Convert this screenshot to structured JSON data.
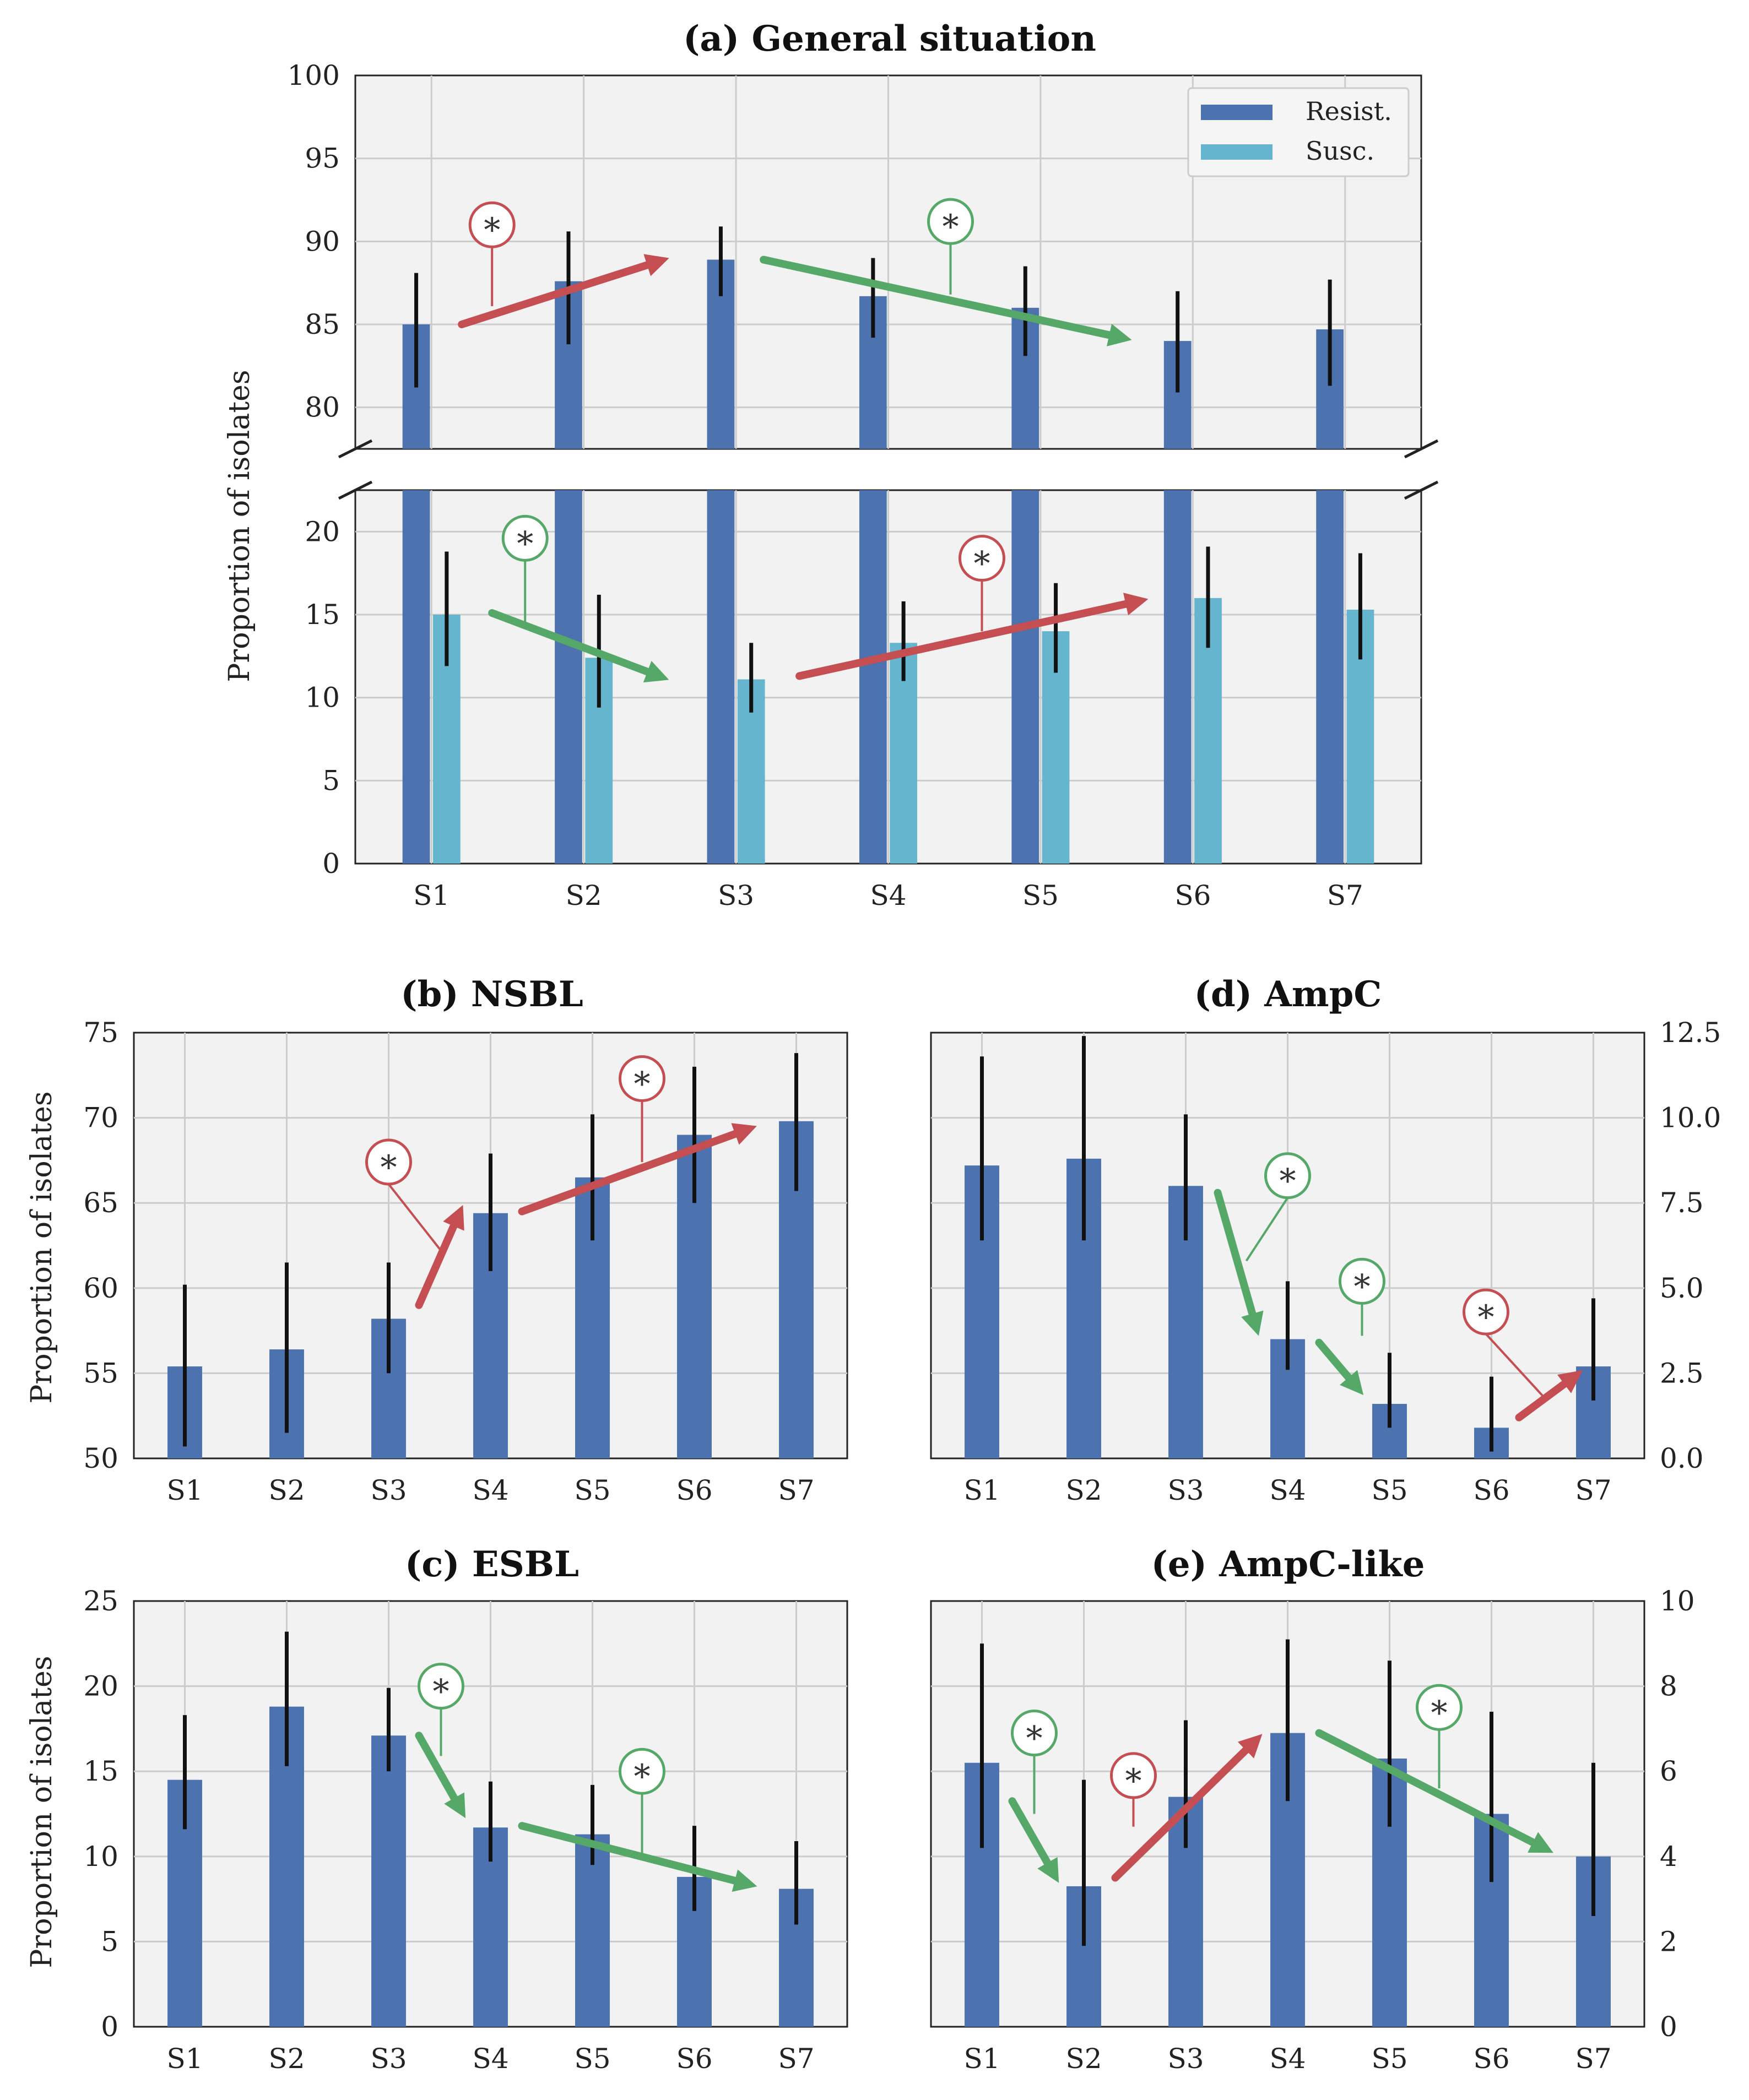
{
  "chart_data": [
    {
      "id": "a",
      "type": "bar",
      "title": "(a) General situation",
      "ylabel": "Proportion of isolates",
      "categories": [
        "S1",
        "S2",
        "S3",
        "S4",
        "S5",
        "S6",
        "S7"
      ],
      "broken_axis": true,
      "upper_ylim": [
        77.5,
        100
      ],
      "lower_ylim": [
        0,
        22.5
      ],
      "upper_ticks": [
        "80",
        "85",
        "90",
        "95",
        "100"
      ],
      "lower_ticks": [
        "0",
        "5",
        "10",
        "15",
        "20"
      ],
      "legend": {
        "position": "top-right",
        "entries": [
          "Resist.",
          "Susc."
        ]
      },
      "series": [
        {
          "name": "Resist.",
          "color": "#4c72b0",
          "values": [
            85,
            87.6,
            88.9,
            86.7,
            86,
            84,
            84.7
          ],
          "err_low": [
            81.2,
            83.8,
            86.7,
            84.2,
            83.1,
            80.9,
            81.3
          ],
          "err_high": [
            88.1,
            90.6,
            90.9,
            89,
            88.5,
            87,
            87.7
          ]
        },
        {
          "name": "Susc.",
          "color": "#64b5cd",
          "values": [
            15,
            12.4,
            11.1,
            13.3,
            14,
            16,
            15.3
          ],
          "err_low": [
            11.9,
            9.4,
            9.1,
            11,
            11.5,
            13,
            12.3
          ],
          "err_high": [
            18.8,
            16.2,
            13.3,
            15.8,
            16.9,
            19.1,
            18.7
          ]
        }
      ],
      "annotations": [
        {
          "symbol": "*",
          "trend": "increase",
          "color": "#c44e52",
          "from": "S1",
          "to": "S3",
          "series": "Resist."
        },
        {
          "symbol": "*",
          "trend": "decrease",
          "color": "#55a868",
          "from": "S3",
          "to": "S6",
          "series": "Resist."
        },
        {
          "symbol": "*",
          "trend": "decrease",
          "color": "#55a868",
          "from": "S1",
          "to": "S3",
          "series": "Susc."
        },
        {
          "symbol": "*",
          "trend": "increase",
          "color": "#c44e52",
          "from": "S3",
          "to": "S6",
          "series": "Susc."
        }
      ]
    },
    {
      "id": "b",
      "type": "bar",
      "title": "(b) NSBL",
      "ylabel": "Proportion of isolates",
      "categories": [
        "S1",
        "S2",
        "S3",
        "S4",
        "S5",
        "S6",
        "S7"
      ],
      "ylim": [
        50,
        75
      ],
      "yticks": [
        "50",
        "55",
        "60",
        "65",
        "70",
        "75"
      ],
      "series": [
        {
          "name": "Resist.",
          "color": "#4c72b0",
          "values": [
            55.4,
            56.4,
            58.2,
            64.4,
            66.5,
            69,
            69.8
          ],
          "err_low": [
            50.7,
            51.5,
            55,
            61,
            62.8,
            65,
            65.7
          ],
          "err_high": [
            60.2,
            61.5,
            61.5,
            67.9,
            70.2,
            73,
            73.8
          ]
        }
      ],
      "annotations": [
        {
          "symbol": "*",
          "trend": "increase",
          "color": "#c44e52",
          "from": "S3",
          "to": "S4"
        },
        {
          "symbol": "*",
          "trend": "increase",
          "color": "#c44e52",
          "from": "S4",
          "to": "S7"
        }
      ]
    },
    {
      "id": "d",
      "type": "bar",
      "title": "(d) AmpC",
      "categories": [
        "S1",
        "S2",
        "S3",
        "S4",
        "S5",
        "S6",
        "S7"
      ],
      "ylim": [
        0,
        12.5
      ],
      "yticks": [
        "0.0",
        "2.5",
        "5.0",
        "7.5",
        "10.0",
        "12.5"
      ],
      "series": [
        {
          "name": "Resist.",
          "color": "#4c72b0",
          "values": [
            8.6,
            8.8,
            8.0,
            3.5,
            1.6,
            0.9,
            2.7
          ],
          "err_low": [
            6.4,
            6.4,
            6.4,
            2.6,
            0.9,
            0.2,
            1.7
          ],
          "err_high": [
            11.8,
            12.4,
            10.1,
            5.2,
            3.1,
            2.4,
            4.7
          ]
        }
      ],
      "annotations": [
        {
          "symbol": "*",
          "trend": "decrease",
          "color": "#55a868",
          "from": "S3",
          "to": "S4"
        },
        {
          "symbol": "*",
          "trend": "decrease",
          "color": "#55a868",
          "from": "S4",
          "to": "S5"
        },
        {
          "symbol": "*",
          "trend": "increase",
          "color": "#c44e52",
          "from": "S6",
          "to": "S7"
        }
      ]
    },
    {
      "id": "c",
      "type": "bar",
      "title": "(c) ESBL",
      "ylabel": "Proportion of isolates",
      "categories": [
        "S1",
        "S2",
        "S3",
        "S4",
        "S5",
        "S6",
        "S7"
      ],
      "ylim": [
        0,
        25
      ],
      "yticks": [
        "0",
        "5",
        "10",
        "15",
        "20",
        "25"
      ],
      "series": [
        {
          "name": "Resist.",
          "color": "#4c72b0",
          "values": [
            14.5,
            18.8,
            17.1,
            11.7,
            11.3,
            8.8,
            8.1
          ],
          "err_low": [
            11.6,
            15.3,
            15,
            9.7,
            9.5,
            6.8,
            6
          ],
          "err_high": [
            18.3,
            23.2,
            19.9,
            14.4,
            14.2,
            11.8,
            10.9
          ]
        }
      ],
      "annotations": [
        {
          "symbol": "*",
          "trend": "decrease",
          "color": "#55a868",
          "from": "S3",
          "to": "S4"
        },
        {
          "symbol": "*",
          "trend": "decrease",
          "color": "#55a868",
          "from": "S4",
          "to": "S7"
        }
      ]
    },
    {
      "id": "e",
      "type": "bar",
      "title": "(e) AmpC-like",
      "categories": [
        "S1",
        "S2",
        "S3",
        "S4",
        "S5",
        "S6",
        "S7"
      ],
      "ylim": [
        0,
        10
      ],
      "yticks": [
        "0",
        "2",
        "4",
        "6",
        "8",
        "10"
      ],
      "series": [
        {
          "name": "Resist.",
          "color": "#4c72b0",
          "values": [
            6.2,
            3.3,
            5.4,
            6.9,
            6.3,
            5,
            4
          ],
          "err_low": [
            4.2,
            1.9,
            4.2,
            5.3,
            4.7,
            3.4,
            2.6
          ],
          "err_high": [
            9,
            5.8,
            7.2,
            9.1,
            8.6,
            7.4,
            6.2
          ]
        }
      ],
      "annotations": [
        {
          "symbol": "*",
          "trend": "decrease",
          "color": "#55a868",
          "from": "S1",
          "to": "S2"
        },
        {
          "symbol": "*",
          "trend": "increase",
          "color": "#c44e52",
          "from": "S2",
          "to": "S4"
        },
        {
          "symbol": "*",
          "trend": "decrease",
          "color": "#55a868",
          "from": "S4",
          "to": "S7"
        }
      ]
    }
  ]
}
